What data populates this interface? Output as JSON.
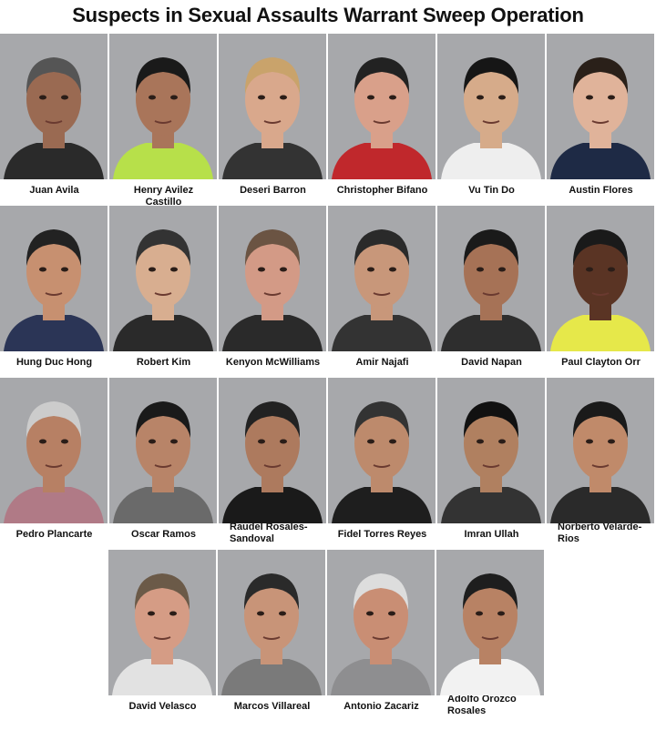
{
  "title": "Suspects in Sexual Assaults Warrant Sweep Operation",
  "suspects": [
    {
      "name": "Juan Avila",
      "skin": "#9a6a52",
      "hair": "#555",
      "shirt": "#2a2a2a"
    },
    {
      "name": "Henry Avilez Castillo",
      "skin": "#a9755a",
      "hair": "#1a1a1a",
      "shirt": "#b7e04a"
    },
    {
      "name": "Deseri Barron",
      "skin": "#d9a88c",
      "hair": "#c9a36b",
      "shirt": "#333"
    },
    {
      "name": "Christopher Bifano",
      "skin": "#d9a08a",
      "hair": "#222",
      "shirt": "#c0282c"
    },
    {
      "name": "Vu Tin Do",
      "skin": "#d6ab8a",
      "hair": "#161616",
      "shirt": "#eee"
    },
    {
      "name": "Austin Flores",
      "skin": "#e0b39a",
      "hair": "#2a2019",
      "shirt": "#1e2a45"
    },
    {
      "name": "Hung Duc Hong",
      "skin": "#c79070",
      "hair": "#222",
      "shirt": "#2b3556"
    },
    {
      "name": "Robert Kim",
      "skin": "#d8ae90",
      "hair": "#333",
      "shirt": "#2a2a2a"
    },
    {
      "name": "Kenyon McWilliams",
      "skin": "#d39a86",
      "hair": "#6b5443",
      "shirt": "#2a2a2a"
    },
    {
      "name": "Amir Najafi",
      "skin": "#c8977a",
      "hair": "#2a2a2a",
      "shirt": "#333"
    },
    {
      "name": "David Napan",
      "skin": "#a67256",
      "hair": "#1a1a1a",
      "shirt": "#2e2e2e"
    },
    {
      "name": "Paul Clayton Orr",
      "skin": "#5a3424",
      "hair": "#1a1a1a",
      "shirt": "#e6e84a"
    },
    {
      "name": "Pedro Plancarte",
      "skin": "#b78064",
      "hair": "#ccc",
      "shirt": "#b07a86"
    },
    {
      "name": "Oscar Ramos",
      "skin": "#b88468",
      "hair": "#1a1a1a",
      "shirt": "#6a6a6a"
    },
    {
      "name": "Raudel Rosales-Sandoval",
      "skin": "#ad7a5e",
      "hair": "#222",
      "shirt": "#1a1a1a"
    },
    {
      "name": "Fidel Torres Reyes",
      "skin": "#bd8a6c",
      "hair": "#333",
      "shirt": "#1e1e1e"
    },
    {
      "name": "Imran Ullah",
      "skin": "#b08060",
      "hair": "#111",
      "shirt": "#333"
    },
    {
      "name": "Norberto Velarde-Rios",
      "skin": "#c08a6a",
      "hair": "#1a1a1a",
      "shirt": "#2a2a2a"
    },
    {
      "name": "David Velasco",
      "skin": "#d59c85",
      "hair": "#6b5a48",
      "shirt": "#e2e2e2"
    },
    {
      "name": "Marcos Villareal",
      "skin": "#c89478",
      "hair": "#2a2a2a",
      "shirt": "#7a7a7a"
    },
    {
      "name": "Antonio Zacariz",
      "skin": "#c98e74",
      "hair": "#ddd",
      "shirt": "#8e8e90"
    },
    {
      "name": "Adolfo Orozco Rosales",
      "skin": "#b88264",
      "hair": "#1e1e1e",
      "shirt": "#f2f2f2"
    }
  ]
}
